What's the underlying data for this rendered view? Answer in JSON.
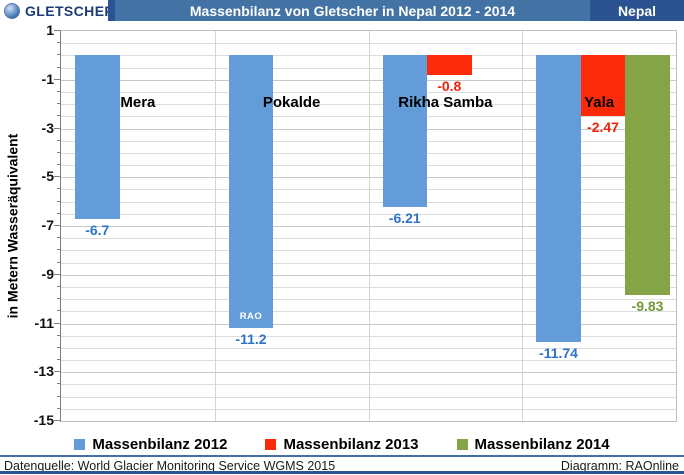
{
  "header": {
    "logo_text": "GLETSCHER",
    "title": "Massenbilanz von Gletscher in Nepal 2012 - 2014",
    "region": "Nepal"
  },
  "chart_data": {
    "type": "bar",
    "title": "Massenbilanz von Gletscher in Nepal 2012 - 2014",
    "categories": [
      "Mera",
      "Pokalde",
      "Rikha Samba",
      "Yala"
    ],
    "series": [
      {
        "name": "Massenbilanz 2012",
        "color": "#639cd8",
        "label_color": "#2e73c8",
        "values": [
          -6.7,
          -11.2,
          -6.21,
          -11.74
        ],
        "labels": [
          "-6.7",
          "-11.2",
          "-6.21",
          "-11.74"
        ]
      },
      {
        "name": "Massenbilanz 2013",
        "color": "#fb2b09",
        "label_color": "#ee2209",
        "values": [
          null,
          null,
          -0.8,
          -2.47
        ],
        "labels": [
          null,
          null,
          "-0.8",
          "-2.47"
        ]
      },
      {
        "name": "Massenbilanz 2014",
        "color": "#84a445",
        "label_color": "#75943a",
        "values": [
          null,
          null,
          null,
          -9.83
        ],
        "labels": [
          null,
          null,
          null,
          "-9.83"
        ]
      }
    ],
    "ylabel": "in Metern Wasseräquivalent",
    "xlabel": "",
    "ylim": [
      -15,
      1
    ],
    "ytick_step": 2,
    "ytick_labels": [
      "1",
      "-1",
      "-3",
      "-5",
      "-7",
      "-9",
      "-11",
      "-13",
      "-15"
    ],
    "minor_grid_step": 0.5,
    "grid": true,
    "legend_position": "bottom",
    "annotation": {
      "text": "RAO",
      "series_index": 0,
      "category_index": 1
    }
  },
  "footer": {
    "source": "Datenquelle: World Glacier Monitoring Service  WGMS 2015",
    "credit": "Diagramm: RAOnline"
  }
}
